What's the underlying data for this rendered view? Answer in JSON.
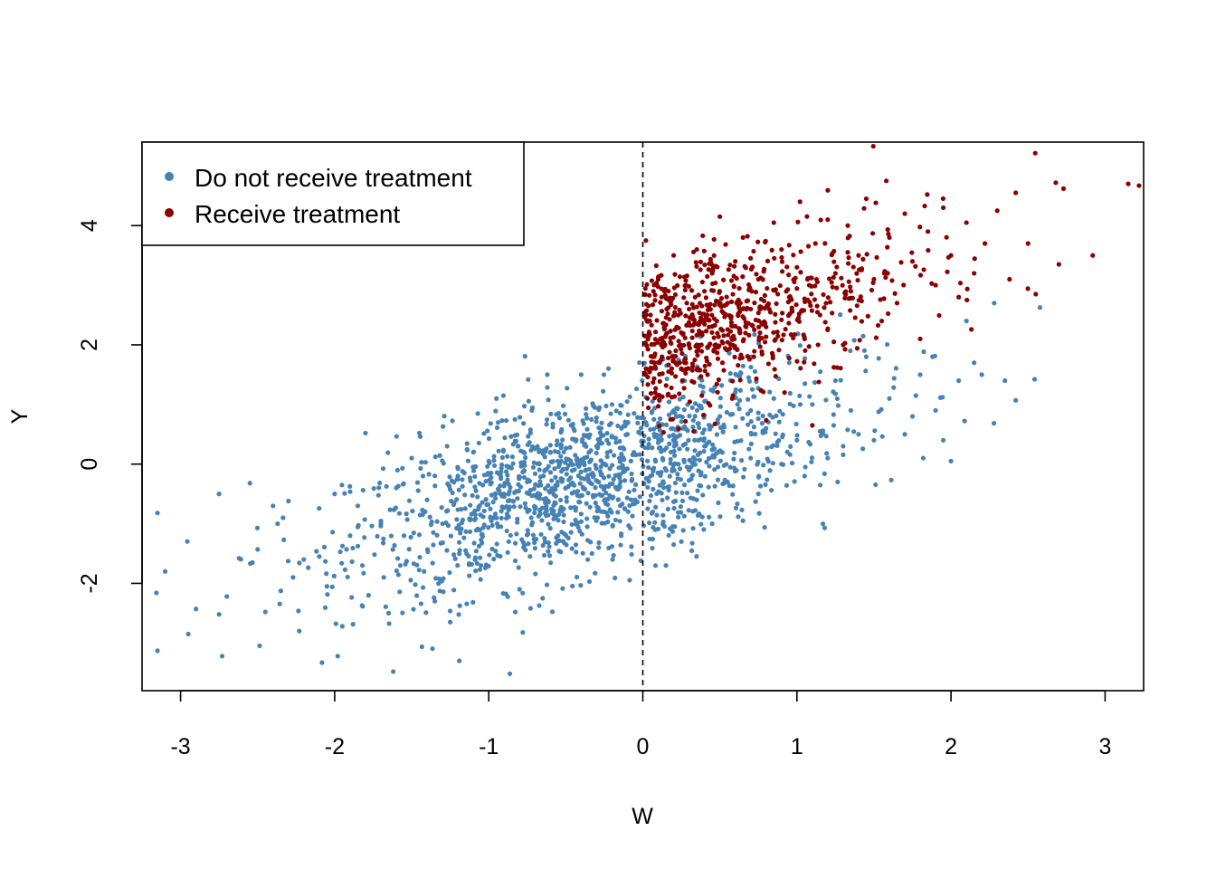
{
  "chart_data": {
    "type": "scatter",
    "title": "",
    "xlabel": "W",
    "ylabel": "Y",
    "xlim": [
      -3.25,
      3.25
    ],
    "ylim": [
      -3.8,
      5.4
    ],
    "x_ticks": [
      -3,
      -2,
      -1,
      0,
      1,
      2,
      3
    ],
    "y_ticks": [
      -2,
      0,
      2,
      4
    ],
    "grid": false,
    "legend_position": "top-left",
    "threshold": {
      "x": 0,
      "style": "dashed",
      "color": "#000000"
    },
    "series": [
      {
        "name": "Do not receive treatment",
        "color": "#4682b4",
        "approx_count": 1300,
        "points": [
          [
            -3.15,
            -0.82
          ],
          [
            -3.15,
            -3.13
          ],
          [
            -3.1,
            -1.8
          ],
          [
            -2.95,
            -2.85
          ],
          [
            -2.9,
            -2.43
          ],
          [
            -2.75,
            -0.5
          ],
          [
            -2.75,
            -2.52
          ],
          [
            -2.73,
            -3.22
          ],
          [
            -2.7,
            -2.22
          ],
          [
            -2.62,
            -1.58
          ],
          [
            -2.55,
            -0.32
          ],
          [
            -2.5,
            -1.43
          ],
          [
            -2.45,
            -2.48
          ],
          [
            -2.4,
            -0.7
          ],
          [
            -2.37,
            -1.0
          ],
          [
            -2.33,
            -1.27
          ],
          [
            -2.3,
            -0.62
          ],
          [
            -2.27,
            -1.9
          ],
          [
            -2.23,
            -2.8
          ],
          [
            -2.2,
            -1.6
          ],
          [
            -2.1,
            -1.55
          ],
          [
            -2.05,
            -2.05
          ],
          [
            -2.0,
            -0.5
          ],
          [
            -1.98,
            -3.22
          ],
          [
            -1.95,
            -2.72
          ],
          [
            -1.9,
            -1.2
          ],
          [
            -1.85,
            -0.7
          ],
          [
            -1.82,
            -1.7
          ],
          [
            -1.8,
            0.52
          ],
          [
            -1.78,
            -2.2
          ],
          [
            -1.7,
            -1.0
          ],
          [
            -1.65,
            -2.5
          ],
          [
            -1.62,
            -3.48
          ],
          [
            -1.6,
            -0.4
          ],
          [
            -1.55,
            -1.2
          ],
          [
            -1.5,
            0.1
          ],
          [
            -1.45,
            0.52
          ],
          [
            -1.42,
            -1.8
          ],
          [
            -1.4,
            -0.6
          ],
          [
            -1.35,
            -2.3
          ],
          [
            -1.3,
            -1.0
          ],
          [
            -1.27,
            0.3
          ],
          [
            -1.25,
            -2.65
          ],
          [
            -1.2,
            -0.2
          ],
          [
            -1.15,
            -1.45
          ],
          [
            -1.1,
            0.2
          ],
          [
            -1.05,
            -1.7
          ],
          [
            -1.0,
            0.05
          ],
          [
            -0.97,
            -0.9
          ],
          [
            -0.95,
            1.1
          ],
          [
            -0.9,
            -0.5
          ],
          [
            -0.87,
            -1.3
          ],
          [
            -0.83,
            0.75
          ],
          [
            -0.8,
            -2.1
          ],
          [
            -0.75,
            -0.3
          ],
          [
            -0.72,
            0.9
          ],
          [
            -0.7,
            -0.75
          ],
          [
            -0.65,
            -2.25
          ],
          [
            -0.62,
            1.5
          ],
          [
            -0.6,
            0.2
          ],
          [
            -0.55,
            -1.2
          ],
          [
            -0.5,
            -0.4
          ],
          [
            -0.45,
            0.6
          ],
          [
            -0.4,
            1.5
          ],
          [
            -0.37,
            -0.1
          ],
          [
            -0.33,
            -1.5
          ],
          [
            -0.3,
            0.3
          ],
          [
            -0.25,
            -0.8
          ],
          [
            -0.2,
            1.0
          ],
          [
            -0.15,
            -0.35
          ],
          [
            -0.1,
            0.5
          ],
          [
            -0.05,
            -0.6
          ],
          [
            0.02,
            0.7
          ],
          [
            0.05,
            -0.2
          ],
          [
            0.08,
            -1.1
          ],
          [
            0.12,
            0.4
          ],
          [
            0.15,
            -1.7
          ],
          [
            0.2,
            0.9
          ],
          [
            0.25,
            -1.3
          ],
          [
            0.3,
            -0.1
          ],
          [
            0.35,
            -0.6
          ],
          [
            0.4,
            0.3
          ],
          [
            0.45,
            -1.0
          ],
          [
            0.5,
            0.8
          ],
          [
            0.55,
            -0.3
          ],
          [
            0.6,
            1.2
          ],
          [
            0.65,
            -0.95
          ],
          [
            0.7,
            0.1
          ],
          [
            0.75,
            -0.5
          ],
          [
            0.8,
            0.6
          ],
          [
            0.85,
            1.1
          ],
          [
            0.9,
            0.0
          ],
          [
            0.95,
            1.7
          ],
          [
            1.0,
            0.4
          ],
          [
            1.05,
            -0.2
          ],
          [
            1.1,
            1.0
          ],
          [
            1.15,
            0.55
          ],
          [
            1.18,
            -1.07
          ],
          [
            1.2,
            0.1
          ],
          [
            1.25,
            1.4
          ],
          [
            1.3,
            0.3
          ],
          [
            1.35,
            0.9
          ],
          [
            1.4,
            0.5
          ],
          [
            1.45,
            1.8
          ],
          [
            1.5,
            0.4
          ],
          [
            1.6,
            1.1
          ],
          [
            1.7,
            0.5
          ],
          [
            1.75,
            0.8
          ],
          [
            1.8,
            1.5
          ],
          [
            1.82,
            0.1
          ],
          [
            1.88,
            1.8
          ],
          [
            1.9,
            0.9
          ],
          [
            1.95,
            0.4
          ],
          [
            2.0,
            0.05
          ],
          [
            2.05,
            1.4
          ],
          [
            2.1,
            2.4
          ],
          [
            2.15,
            1.7
          ],
          [
            2.2,
            1.5
          ],
          [
            2.28,
            2.7
          ],
          [
            2.35,
            1.4
          ],
          [
            2.42,
            1.07
          ]
        ]
      },
      {
        "name": "Receive treatment",
        "color": "#8b0000",
        "approx_count": 700,
        "points": [
          [
            0.02,
            3.75
          ],
          [
            0.05,
            2.5
          ],
          [
            0.08,
            1.2
          ],
          [
            0.1,
            3.1
          ],
          [
            0.12,
            2.0
          ],
          [
            0.15,
            2.8
          ],
          [
            0.18,
            0.75
          ],
          [
            0.2,
            3.5
          ],
          [
            0.22,
            2.3
          ],
          [
            0.25,
            1.6
          ],
          [
            0.28,
            3.0
          ],
          [
            0.3,
            2.6
          ],
          [
            0.33,
            0.55
          ],
          [
            0.35,
            3.6
          ],
          [
            0.38,
            2.0
          ],
          [
            0.4,
            2.9
          ],
          [
            0.42,
            1.5
          ],
          [
            0.45,
            3.2
          ],
          [
            0.48,
            2.4
          ],
          [
            0.5,
            4.15
          ],
          [
            0.55,
            2.7
          ],
          [
            0.58,
            1.1
          ],
          [
            0.6,
            3.4
          ],
          [
            0.63,
            2.2
          ],
          [
            0.65,
            3.8
          ],
          [
            0.7,
            2.6
          ],
          [
            0.72,
            1.8
          ],
          [
            0.75,
            3.1
          ],
          [
            0.8,
            2.3
          ],
          [
            0.85,
            4.05
          ],
          [
            0.9,
            3.6
          ],
          [
            0.92,
            1.2
          ],
          [
            0.95,
            2.8
          ],
          [
            1.0,
            3.3
          ],
          [
            1.02,
            4.4
          ],
          [
            1.05,
            2.1
          ],
          [
            1.08,
            3.0
          ],
          [
            1.1,
            0.65
          ],
          [
            1.12,
            3.7
          ],
          [
            1.15,
            2.5
          ],
          [
            1.2,
            4.1
          ],
          [
            1.25,
            3.2
          ],
          [
            1.3,
            2.0
          ],
          [
            1.33,
            4.0
          ],
          [
            1.35,
            2.9
          ],
          [
            1.4,
            3.5
          ],
          [
            1.45,
            4.45
          ],
          [
            1.5,
            3.1
          ],
          [
            1.55,
            2.4
          ],
          [
            1.58,
            4.75
          ],
          [
            1.6,
            3.8
          ],
          [
            1.65,
            2.7
          ],
          [
            1.7,
            4.2
          ],
          [
            1.75,
            3.4
          ],
          [
            1.8,
            2.1
          ],
          [
            1.85,
            3.9
          ],
          [
            1.9,
            3.0
          ],
          [
            1.95,
            4.3
          ],
          [
            2.0,
            3.5
          ],
          [
            2.05,
            2.8
          ],
          [
            2.1,
            4.05
          ],
          [
            2.15,
            3.2
          ],
          [
            2.22,
            3.7
          ],
          [
            2.3,
            4.25
          ],
          [
            2.38,
            3.1
          ],
          [
            2.42,
            4.55
          ],
          [
            2.5,
            3.7
          ],
          [
            2.55,
            2.85
          ],
          [
            2.68,
            4.72
          ],
          [
            2.7,
            3.35
          ],
          [
            2.73,
            4.62
          ],
          [
            2.92,
            3.5
          ],
          [
            3.15,
            4.7
          ],
          [
            3.22,
            4.67
          ]
        ]
      }
    ]
  },
  "legend": {
    "items": [
      {
        "label": "Do not receive treatment",
        "color": "#4682b4"
      },
      {
        "label": "Receive treatment",
        "color": "#8b0000"
      }
    ]
  }
}
